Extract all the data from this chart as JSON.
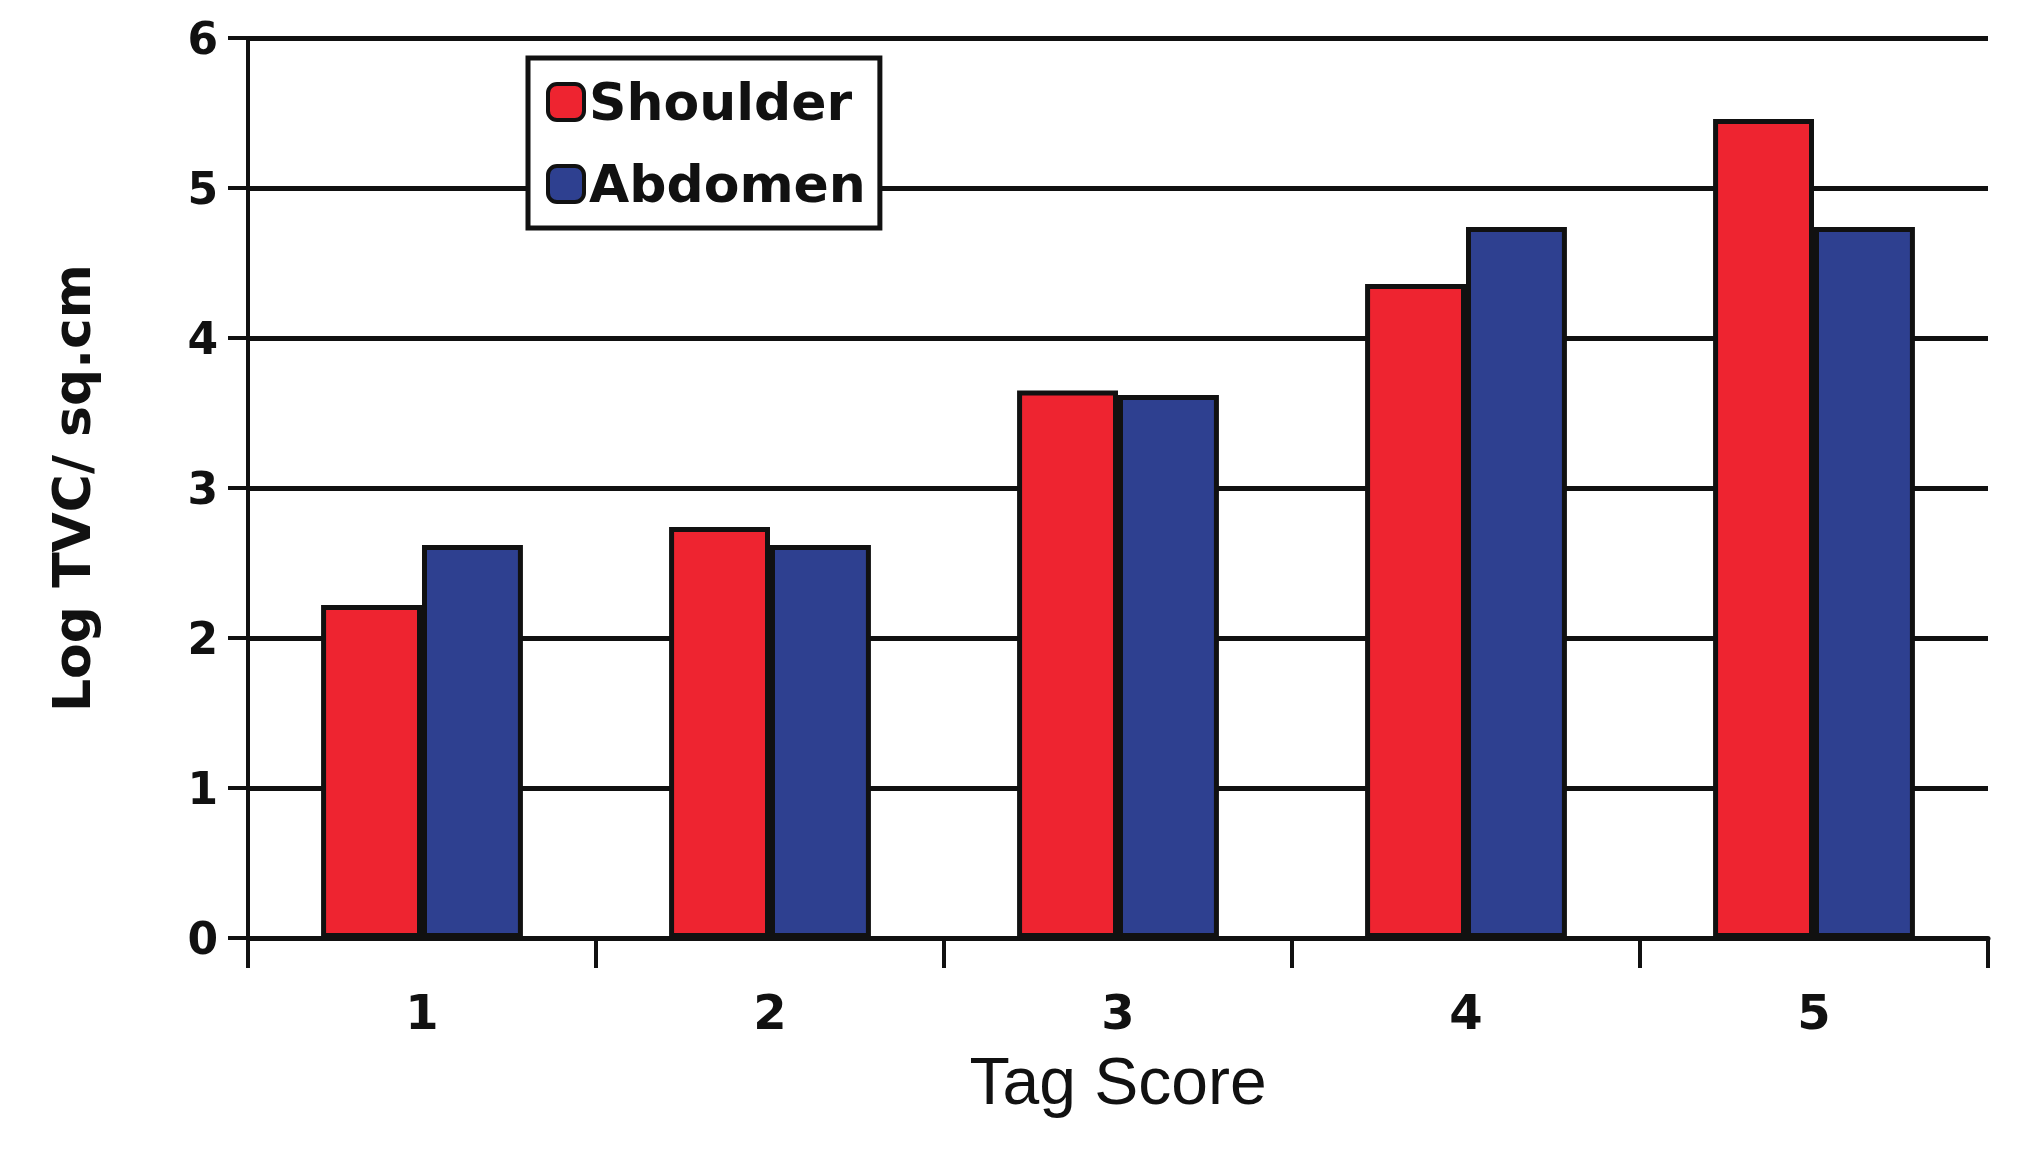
{
  "chart_data": {
    "type": "bar",
    "xlabel": "Tag Score",
    "ylabel": "Log TVC/ sq.cm",
    "categories": [
      "1",
      "2",
      "3",
      "4",
      "5"
    ],
    "series": [
      {
        "name": "Shoulder",
        "color": "#ee2430",
        "values": [
          2.22,
          2.74,
          3.65,
          4.36,
          5.46
        ]
      },
      {
        "name": "Abdomen",
        "color": "#2e4090",
        "values": [
          2.62,
          2.62,
          3.62,
          4.74,
          4.74
        ]
      }
    ],
    "ylim": [
      0,
      6
    ],
    "yticks": [
      0,
      1,
      2,
      3,
      4,
      5,
      6
    ],
    "grid": "y",
    "legend": "top left"
  }
}
